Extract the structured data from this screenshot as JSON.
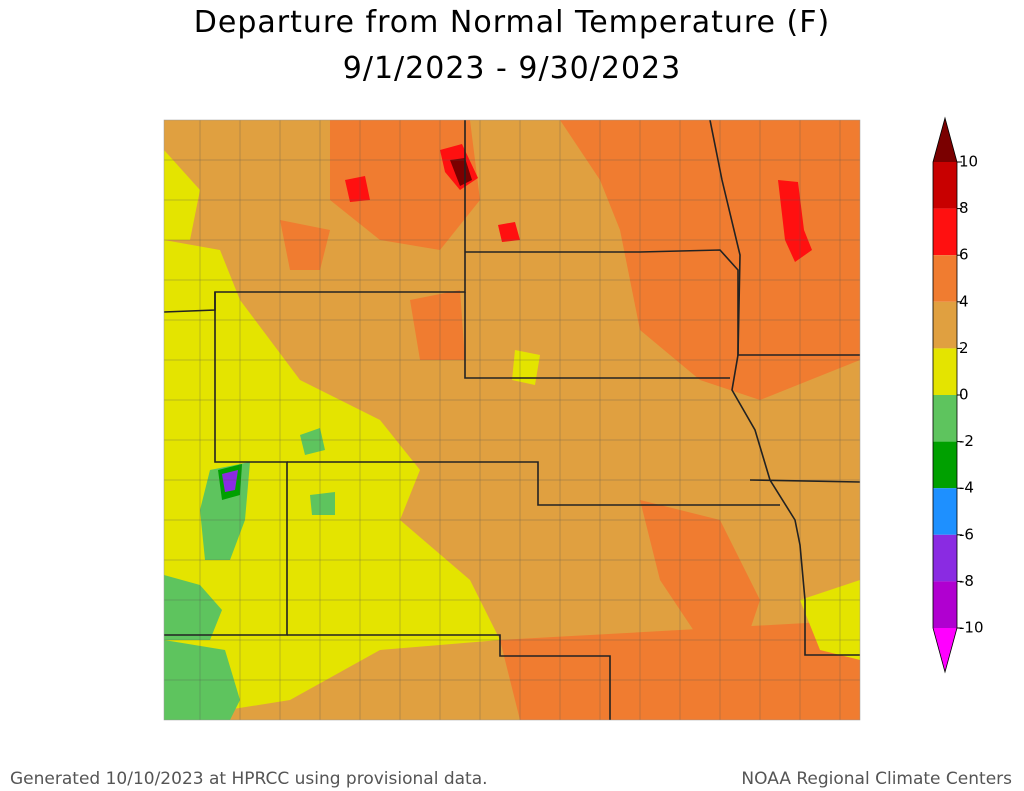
{
  "header": {
    "title": [
      "Departure from Normal Temperature (F)",
      "9/1/2023 - 9/30/2023"
    ]
  },
  "legend": {
    "ticks": [
      10,
      8,
      6,
      4,
      2,
      0,
      -2,
      -4,
      -6,
      -8,
      -10
    ],
    "colors": [
      "#7a0000",
      "#c80000",
      "#ff1010",
      "#f07c30",
      "#e0a040",
      "#e4e400",
      "#5ec45e",
      "#00a000",
      "#1e90ff",
      "#8a2be2",
      "#b000d0",
      "#ff00ff"
    ]
  },
  "footer": {
    "left": "Generated 10/10/2023 at HPRCC using provisional data.",
    "right": "NOAA Regional Climate Centers"
  }
}
